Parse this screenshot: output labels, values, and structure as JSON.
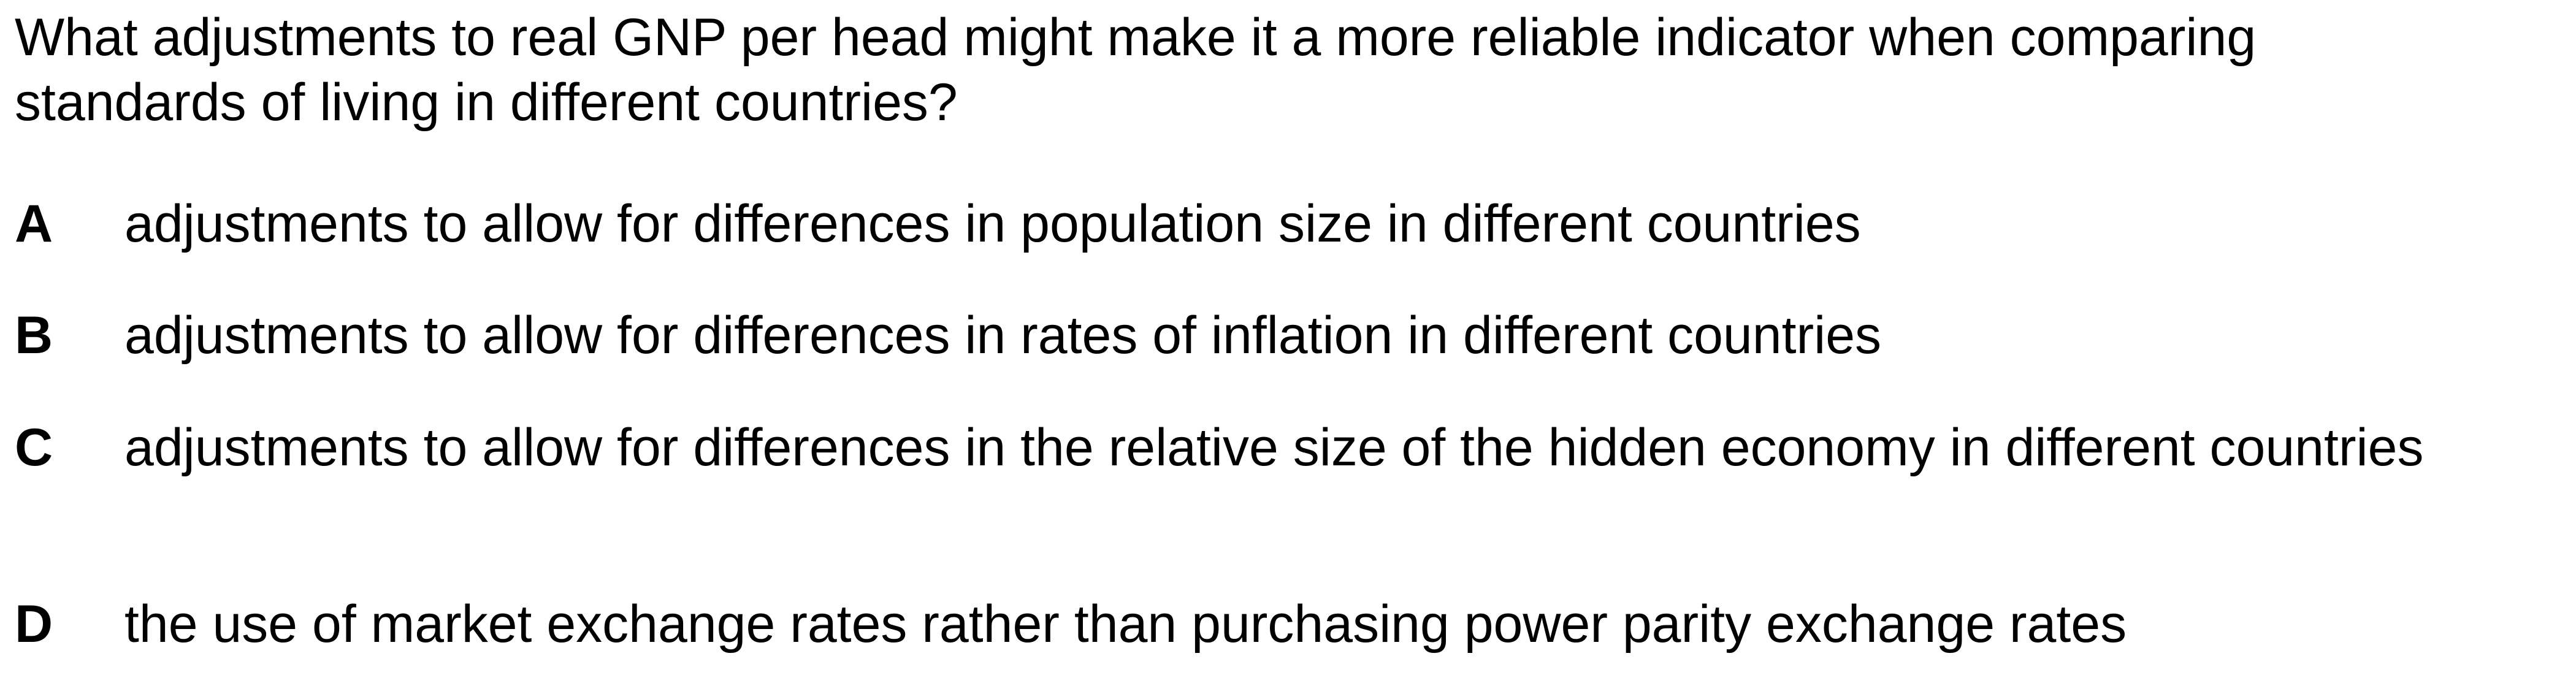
{
  "question": {
    "text": "What adjustments to real GNP per head might make it a more reliable indicator when comparing standards of living in different countries?"
  },
  "options": [
    {
      "letter": "A",
      "text": "adjustments to allow for differences in population size in different countries"
    },
    {
      "letter": "B",
      "text": "adjustments to allow for differences in rates of inflation in different countries"
    },
    {
      "letter": "C",
      "text": "adjustments to allow for differences in the relative size of the hidden economy in different countries"
    },
    {
      "letter": "D",
      "text": "the use of market exchange rates rather than purchasing power parity exchange rates"
    }
  ]
}
